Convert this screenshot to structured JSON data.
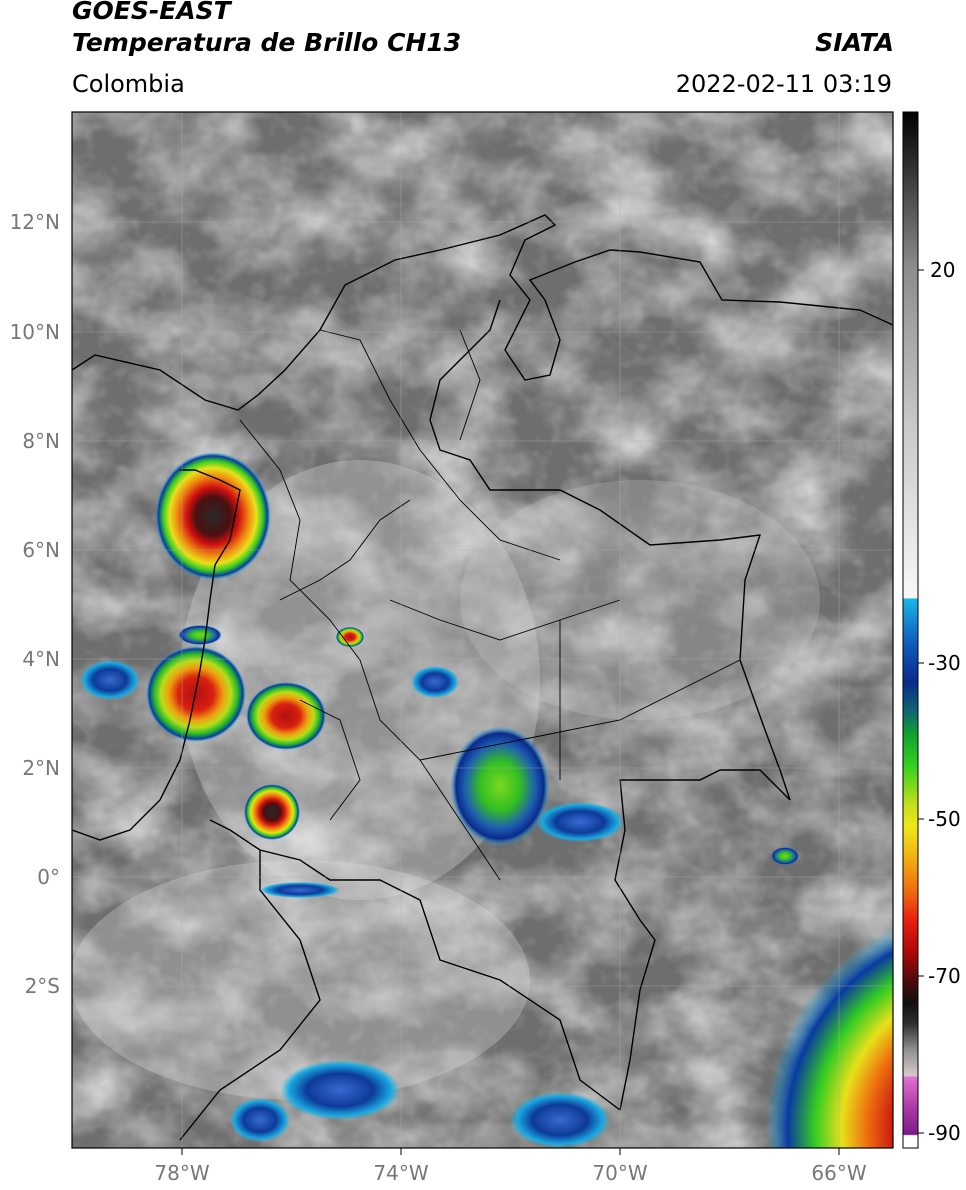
{
  "header": {
    "satellite": "GOES-EAST",
    "product": "Temperatura de Brillo CH13",
    "organization": "SIATA",
    "region": "Colombia",
    "datetime": "2022-02-11 03:19"
  },
  "map": {
    "lon_range": [
      -80,
      -65
    ],
    "lat_range": [
      -5,
      14
    ],
    "lon_ticks": [
      {
        "value": -78,
        "label": "78°W"
      },
      {
        "value": -74,
        "label": "74°W"
      },
      {
        "value": -70,
        "label": "70°W"
      },
      {
        "value": -66,
        "label": "66°W"
      }
    ],
    "lat_ticks": [
      {
        "value": 12,
        "label": "12°N"
      },
      {
        "value": 10,
        "label": "10°N"
      },
      {
        "value": 8,
        "label": "8°N"
      },
      {
        "value": 6,
        "label": "6°N"
      },
      {
        "value": 4,
        "label": "4°N"
      },
      {
        "value": 2,
        "label": "2°N"
      },
      {
        "value": 0,
        "label": "0°"
      },
      {
        "value": -2,
        "label": "2°S"
      }
    ],
    "grid": true
  },
  "colorbar": {
    "range": [
      -92,
      38
    ],
    "ticks": [
      {
        "value": 20,
        "label": "20"
      },
      {
        "value": -30,
        "label": "-30"
      },
      {
        "value": -50,
        "label": "-50"
      },
      {
        "value": -70,
        "label": "-70"
      },
      {
        "value": -90,
        "label": "-90"
      }
    ]
  },
  "colors": {
    "background_gray": "#6e6e6e",
    "cold_cyan": "#19b7e6",
    "cold_blue": "#0a2a8c",
    "mid_green": "#33cc22",
    "mid_yellow": "#f2e21a",
    "warm_red": "#d01010",
    "core_dark": "#1a1a1a"
  }
}
